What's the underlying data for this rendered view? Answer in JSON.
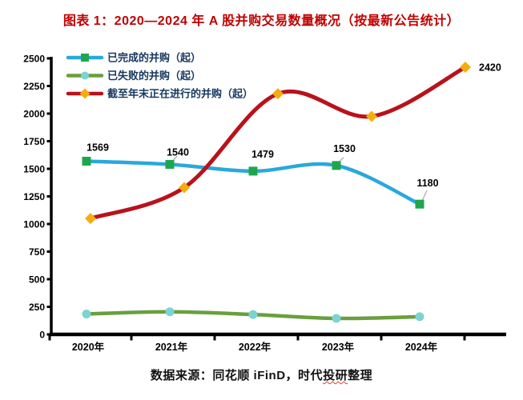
{
  "title": "图表 1：2020—2024 年 A 股并购交易数量概况（按最新公告统计）",
  "source": {
    "prefix": "数据来源：同花顺 iFinD，时代",
    "underlined": "投研",
    "suffix": "整理"
  },
  "colors": {
    "title": "#C00000",
    "legend_text": "#17375E",
    "axis": "#000000",
    "data_label": "#000000",
    "leader_line": "#A6A6A6",
    "spellcheck_underline": "#E23B2E",
    "background": "#FFFFFF"
  },
  "chart_data": {
    "type": "line",
    "title": "图表 1：2020—2024 年 A 股并购交易数量概况（按最新公告统计）",
    "categories": [
      "2020年",
      "2021年",
      "2022年",
      "2023年",
      "2024年"
    ],
    "grid": false,
    "legend_position": "top-left",
    "y_axis": {
      "min": 0,
      "max": 2500,
      "step": 250,
      "tick_labels": [
        "0",
        "250",
        "500",
        "750",
        "1000",
        "1250",
        "1500",
        "1750",
        "2000",
        "2250",
        "2500"
      ]
    },
    "series": [
      {
        "name": "已完成的并购（起）",
        "line_color": "#29A8DC",
        "marker": "square",
        "marker_color": "#1EA64E",
        "values": [
          1569,
          1540,
          1479,
          1530,
          1180
        ],
        "labels": [
          "1569",
          "1540",
          "1479",
          "1530",
          "1180"
        ]
      },
      {
        "name": "已失败的并购（起）",
        "line_color": "#699F3F",
        "marker": "circle",
        "marker_color": "#7BD4D0",
        "values": [
          185,
          205,
          180,
          145,
          160
        ],
        "labels": [
          null,
          null,
          null,
          null,
          null
        ]
      },
      {
        "name": "截至年末正在进行的并购（起）",
        "line_color": "#B9121B",
        "marker": "diamond",
        "marker_color": "#F6AC0E",
        "values": [
          1050,
          1330,
          2180,
          1975,
          2420
        ],
        "labels": [
          null,
          null,
          null,
          null,
          "2420"
        ]
      }
    ]
  }
}
